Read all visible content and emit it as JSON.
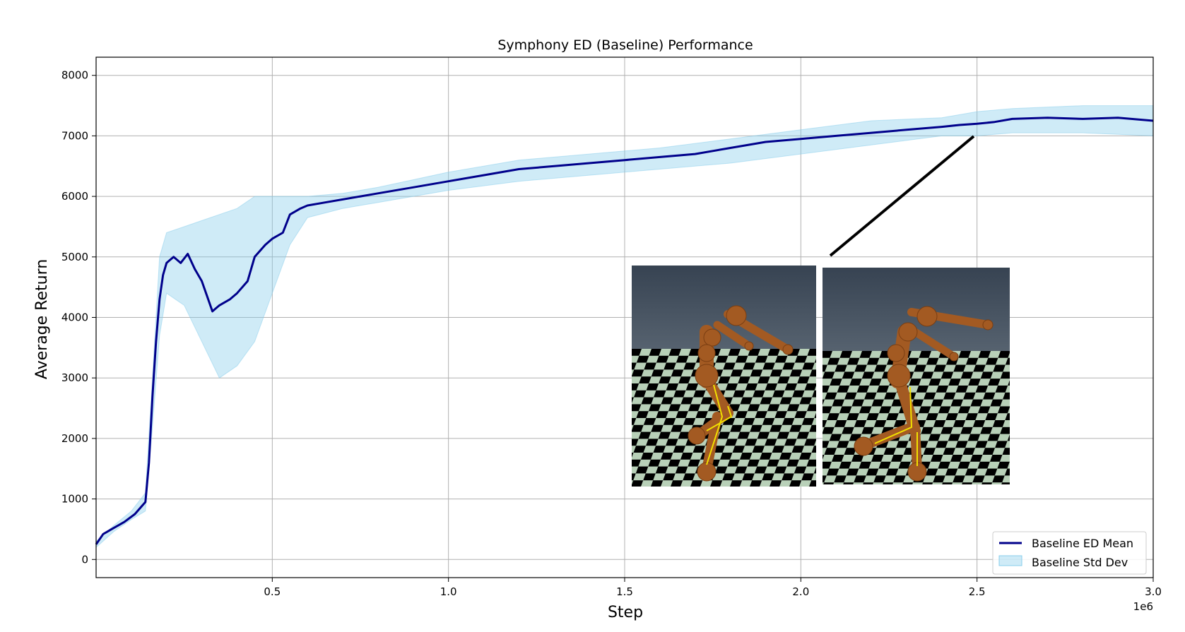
{
  "chart_data": {
    "type": "line",
    "title": "Symphony ED (Baseline) Performance",
    "xlabel": "Step",
    "ylabel": "Average Return",
    "x_offset_label": "1e6",
    "xlim": [
      0,
      3.0
    ],
    "ylim": [
      -300,
      8300
    ],
    "x_ticks": [
      "0.5",
      "1.0",
      "1.5",
      "2.0",
      "2.5",
      "3.0"
    ],
    "y_ticks": [
      "0",
      "1000",
      "2000",
      "3000",
      "4000",
      "5000",
      "6000",
      "7000",
      "8000"
    ],
    "grid": true,
    "legend_position": "bottom-right",
    "colors": {
      "mean": "#00008b",
      "std": "#87ceeb"
    },
    "series": [
      {
        "name": "Baseline ED Mean",
        "kind": "line",
        "x": [
          0.0,
          0.02,
          0.05,
          0.08,
          0.11,
          0.14,
          0.15,
          0.16,
          0.17,
          0.18,
          0.19,
          0.2,
          0.22,
          0.24,
          0.26,
          0.28,
          0.3,
          0.33,
          0.35,
          0.38,
          0.4,
          0.43,
          0.45,
          0.48,
          0.5,
          0.53,
          0.55,
          0.58,
          0.6,
          0.65,
          0.7,
          0.75,
          0.8,
          0.9,
          1.0,
          1.1,
          1.2,
          1.3,
          1.4,
          1.5,
          1.6,
          1.7,
          1.8,
          1.9,
          2.0,
          2.1,
          2.2,
          2.3,
          2.4,
          2.45,
          2.5,
          2.55,
          2.6,
          2.7,
          2.8,
          2.9,
          3.0
        ],
        "y": [
          250,
          420,
          520,
          620,
          750,
          950,
          1600,
          2700,
          3600,
          4300,
          4700,
          4900,
          5000,
          4900,
          5050,
          4800,
          4600,
          4100,
          4200,
          4300,
          4400,
          4600,
          5000,
          5200,
          5300,
          5400,
          5700,
          5800,
          5850,
          5900,
          5950,
          6000,
          6050,
          6150,
          6250,
          6350,
          6450,
          6500,
          6550,
          6600,
          6650,
          6700,
          6800,
          6900,
          6950,
          7000,
          7050,
          7100,
          7150,
          7180,
          7200,
          7230,
          7280,
          7300,
          7280,
          7300,
          7250
        ]
      },
      {
        "name": "Baseline Std Dev",
        "kind": "band",
        "x": [
          0.0,
          0.05,
          0.1,
          0.14,
          0.16,
          0.18,
          0.2,
          0.25,
          0.3,
          0.35,
          0.4,
          0.45,
          0.5,
          0.55,
          0.6,
          0.7,
          0.8,
          1.0,
          1.2,
          1.4,
          1.6,
          1.8,
          2.0,
          2.2,
          2.4,
          2.5,
          2.6,
          2.8,
          3.0
        ],
        "upper": [
          300,
          560,
          800,
          1100,
          3000,
          5000,
          5400,
          5500,
          5600,
          5700,
          5800,
          6000,
          6000,
          6000,
          6000,
          6050,
          6150,
          6400,
          6600,
          6700,
          6800,
          6950,
          7100,
          7250,
          7300,
          7400,
          7450,
          7500,
          7500
        ],
        "lower": [
          200,
          460,
          660,
          800,
          2200,
          3700,
          4400,
          4200,
          3600,
          3000,
          3200,
          3600,
          4400,
          5200,
          5650,
          5800,
          5900,
          6100,
          6250,
          6350,
          6450,
          6550,
          6700,
          6850,
          7000,
          7000,
          7050,
          7050,
          7000
        ]
      }
    ]
  }
}
